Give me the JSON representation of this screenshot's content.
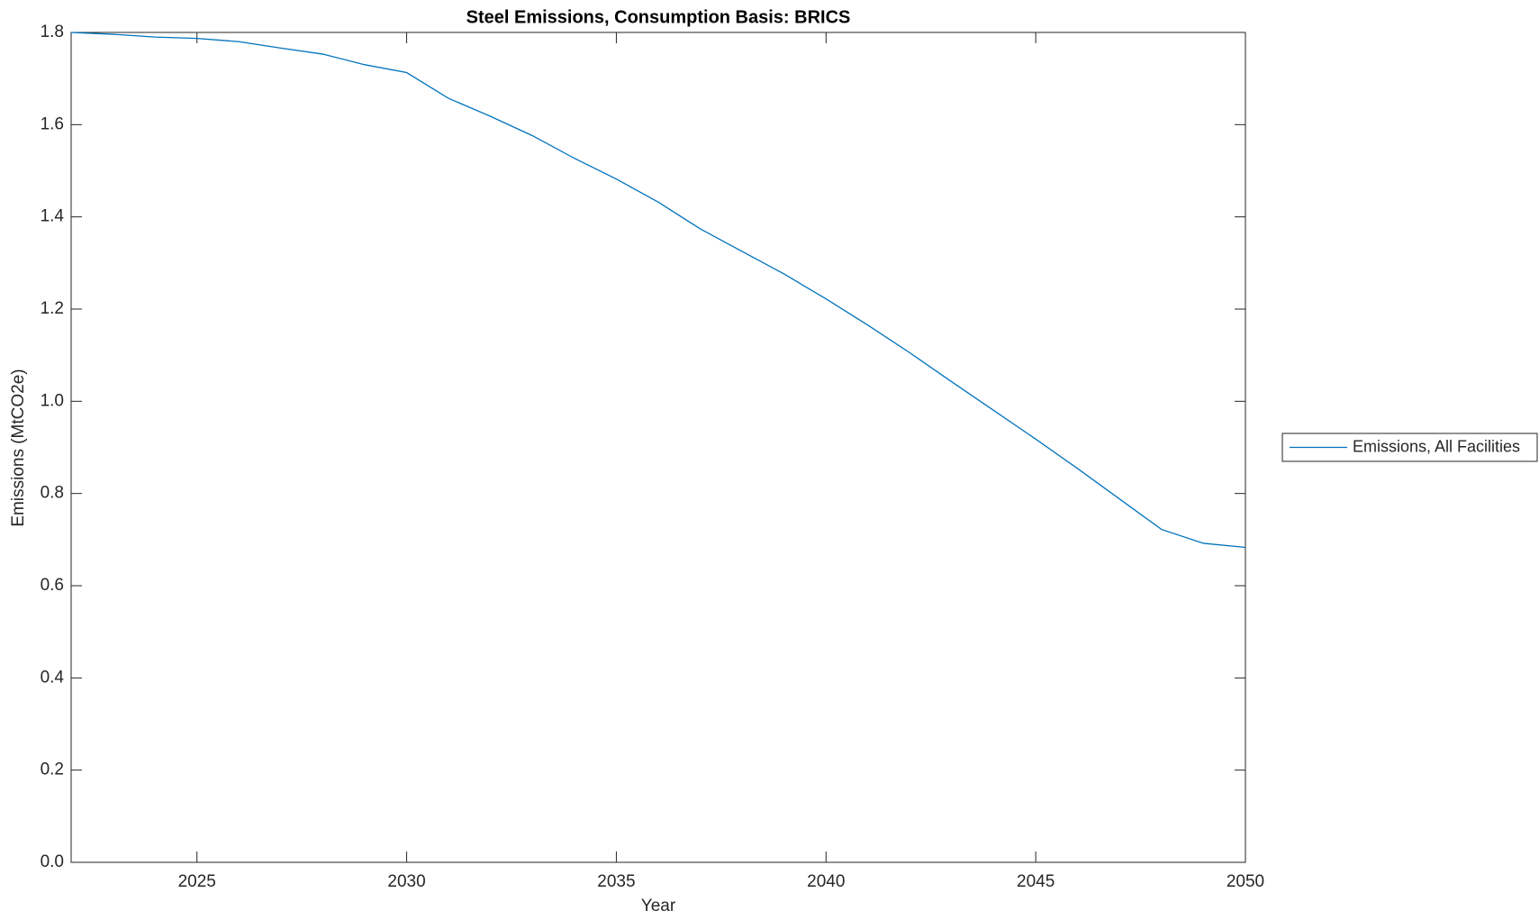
{
  "chart_data": {
    "type": "line",
    "title": "Steel Emissions, Consumption Basis: BRICS",
    "x_label": "Year",
    "y_label": "Emissions (MtCO2e)",
    "x": [
      2022,
      2023,
      2024,
      2025,
      2026,
      2027,
      2028,
      2029,
      2030,
      2031,
      2032,
      2033,
      2034,
      2035,
      2036,
      2037,
      2038,
      2039,
      2040,
      2041,
      2042,
      2043,
      2044,
      2045,
      2046,
      2047,
      2048,
      2049,
      2050
    ],
    "series": [
      {
        "name": "Emissions, All Facilities",
        "color": "#0072bd",
        "values": [
          1.8,
          1.796,
          1.79,
          1.787,
          1.78,
          1.766,
          1.753,
          1.73,
          1.713,
          1.657,
          1.618,
          1.576,
          1.527,
          1.482,
          1.432,
          1.374,
          1.325,
          1.276,
          1.222,
          1.165,
          1.105,
          1.042,
          0.98,
          0.918,
          0.854,
          0.788,
          0.722,
          0.692,
          0.683
        ]
      }
    ],
    "xlim": [
      2022,
      2050
    ],
    "xticks": [
      2025,
      2030,
      2035,
      2040,
      2045,
      2050
    ],
    "ylim": [
      0,
      1.8
    ],
    "yticks": [
      {
        "value": 0,
        "label": "0.0"
      },
      0.2,
      0.4,
      0.6,
      0.8,
      {
        "value": 1,
        "label": "1.0"
      },
      1.2,
      1.4,
      1.6,
      1.8
    ]
  }
}
